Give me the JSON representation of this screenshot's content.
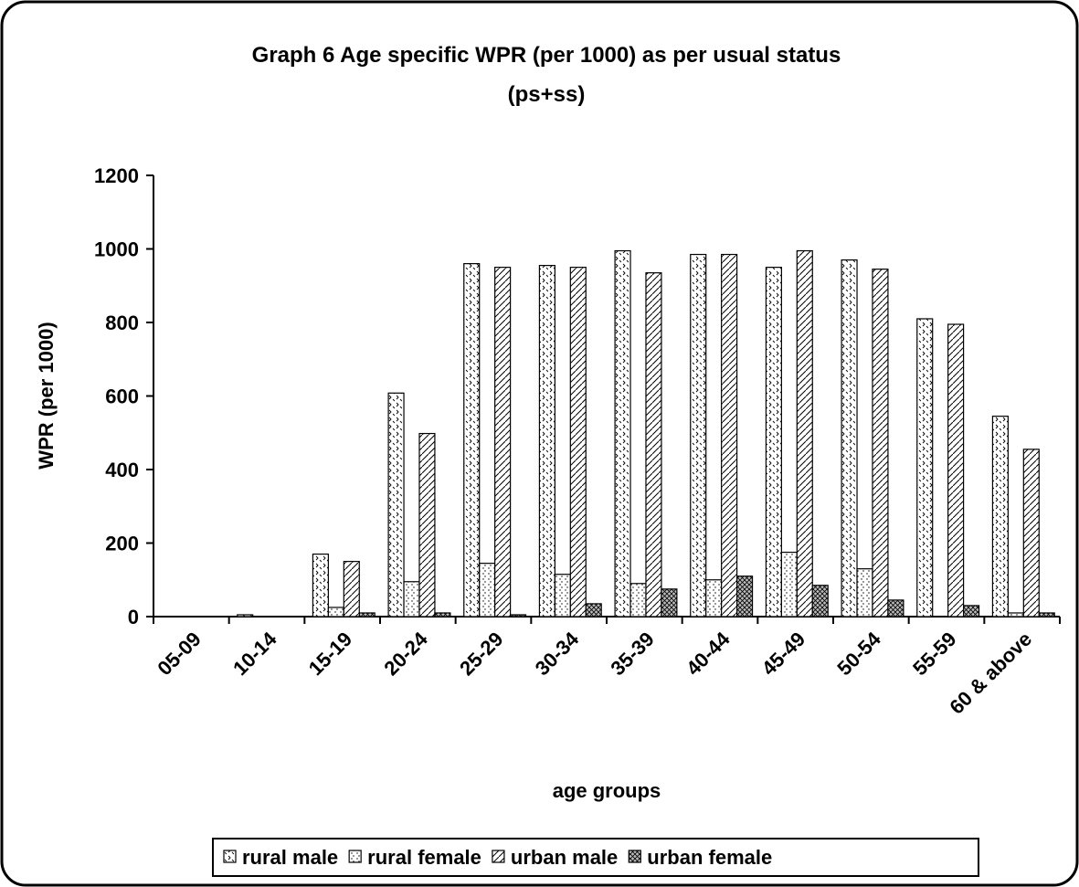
{
  "chart_data": {
    "type": "bar",
    "title": [
      "Graph 6 Age specific WPR (per 1000) as per usual status",
      "(ps+ss)"
    ],
    "xlabel": "age groups",
    "ylabel": "WPR (per 1000)",
    "categories": [
      "05-09",
      "10-14",
      "15-19",
      "20-24",
      "25-29",
      "30-34",
      "35-39",
      "40-44",
      "45-49",
      "50-54",
      "55-59",
      "60 & above"
    ],
    "series": [
      {
        "name": "rural male",
        "color": "#000000",
        "pattern": "dots",
        "values": [
          0,
          5,
          170,
          608,
          960,
          955,
          995,
          985,
          950,
          970,
          810,
          545
        ]
      },
      {
        "name": "rural female",
        "color": "#000000",
        "pattern": "dotted-grid",
        "values": [
          0,
          0,
          25,
          95,
          145,
          115,
          90,
          100,
          175,
          130,
          0,
          10
        ]
      },
      {
        "name": "urban male",
        "color": "#000000",
        "pattern": "diagonal",
        "values": [
          0,
          0,
          150,
          498,
          950,
          950,
          935,
          985,
          995,
          945,
          795,
          455
        ]
      },
      {
        "name": "urban female",
        "color": "#000000",
        "pattern": "crosshatch",
        "values": [
          0,
          0,
          10,
          10,
          5,
          35,
          75,
          110,
          85,
          45,
          30,
          10
        ]
      }
    ],
    "ylim": [
      0,
      1200
    ],
    "yticks": [
      0,
      200,
      400,
      600,
      800,
      1000,
      1200
    ],
    "grid": false,
    "legend": "bottom"
  }
}
